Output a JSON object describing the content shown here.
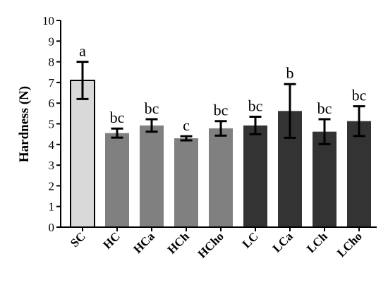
{
  "chart_data": {
    "type": "bar",
    "title": "",
    "xlabel": "",
    "ylabel": "Hardness (N)",
    "ylim": [
      0,
      10
    ],
    "yticks": [
      0,
      1,
      2,
      3,
      4,
      5,
      6,
      7,
      8,
      9,
      10
    ],
    "grid": false,
    "categories": [
      "SC",
      "HC",
      "HCa",
      "HCh",
      "HCho",
      "LC",
      "LCa",
      "LCh",
      "LCho"
    ],
    "values": [
      7.1,
      4.55,
      4.92,
      4.3,
      4.78,
      4.92,
      5.62,
      4.62,
      5.13
    ],
    "errors": [
      0.9,
      0.22,
      0.3,
      0.1,
      0.35,
      0.42,
      1.3,
      0.6,
      0.72
    ],
    "letters": [
      "a",
      "bc",
      "bc",
      "c",
      "bc",
      "bc",
      "b",
      "bc",
      "bc"
    ],
    "colors": [
      "#d9d9d9",
      "#808080",
      "#808080",
      "#808080",
      "#808080",
      "#333333",
      "#333333",
      "#333333",
      "#333333"
    ]
  }
}
